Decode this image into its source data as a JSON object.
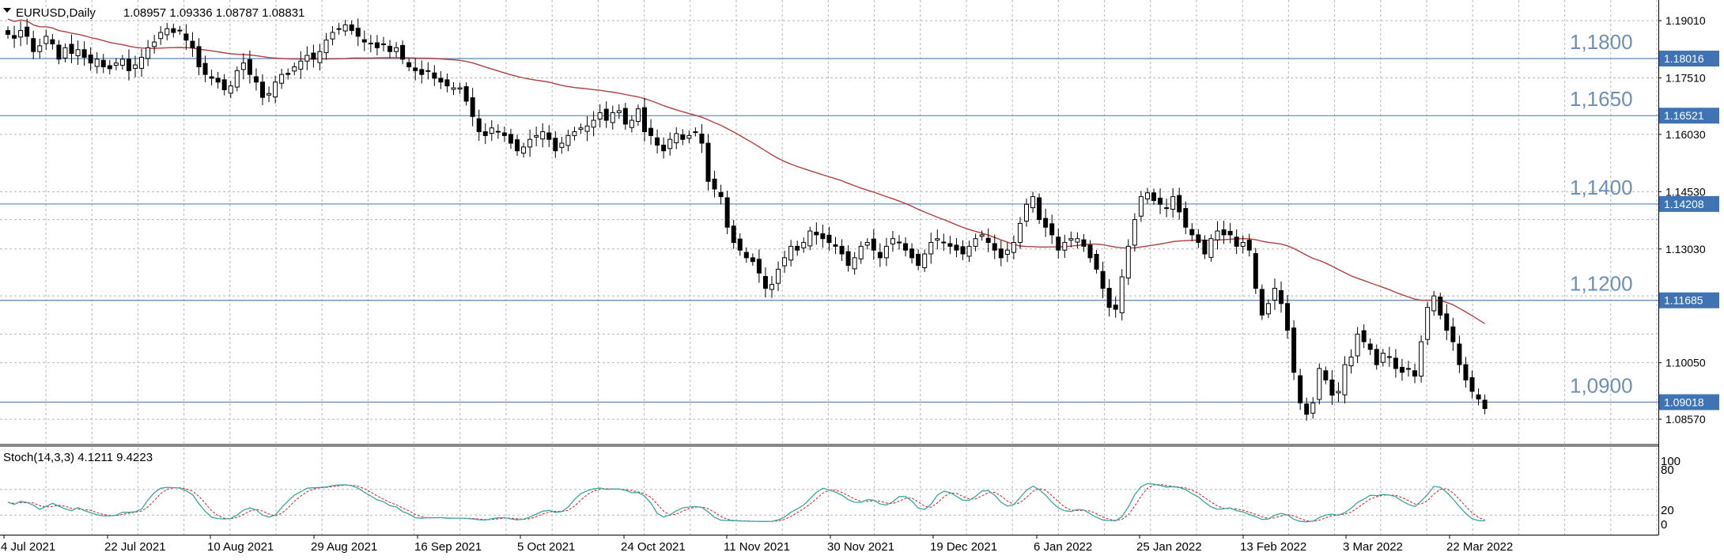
{
  "header": {
    "dropdown_icon": "triangle-down-icon",
    "symbol_label": "EURUSD,Daily",
    "ohlc_text": "1.08957 1.09336 1.08787 1.08831"
  },
  "indicator": {
    "label": "Stoch(14,3,3) 4.1211 9.4223",
    "main_color": "#3aa6a0",
    "signal_color": "#d02020"
  },
  "colors": {
    "candle": "#000000",
    "ma": "#b04040",
    "level_line": "#6d8fb8",
    "level_text": "#6d8fb8",
    "price_tag_bg": "#3f73b4",
    "price_tag_text": "#ffffff",
    "grid": "#b8b8b8"
  },
  "chart_data": [
    {
      "type": "candlestick",
      "symbol": "EURUSD",
      "timeframe": "Daily",
      "ylim": [
        1.0795,
        1.1955
      ],
      "y_ticks": [
        "1.19010",
        "1.17510",
        "1.16030",
        "1.14530",
        "1.13030",
        "1.10050",
        "1.08570"
      ],
      "x_labels": [
        "4 Jul 2021",
        "22 Jul 2021",
        "10 Aug 2021",
        "29 Aug 2021",
        "16 Sep 2021",
        "5 Oct 2021",
        "24 Oct 2021",
        "11 Nov 2021",
        "30 Nov 2021",
        "19 Dec 2021",
        "6 Jan 2022",
        "25 Jan 2022",
        "13 Feb 2022",
        "3 Mar 2022",
        "22 Mar 2022"
      ],
      "horizontal_levels": [
        {
          "label": "1,1800",
          "price": 1.18016,
          "tag": "1.18016"
        },
        {
          "label": "1,1650",
          "price": 1.16521,
          "tag": "1.16521"
        },
        {
          "label": "1,1400",
          "price": 1.14208,
          "tag": "1.14208"
        },
        {
          "label": "1,1200",
          "price": 1.11685,
          "tag": "1.11685"
        },
        {
          "label": "1,0900",
          "price": 1.09018,
          "tag": "1.09018"
        }
      ],
      "close": [
        1.1865,
        1.1855,
        1.1875,
        1.186,
        1.182,
        1.1835,
        1.186,
        1.184,
        1.18,
        1.183,
        1.1815,
        1.1825,
        1.1805,
        1.179,
        1.18,
        1.178,
        1.1775,
        1.179,
        1.18,
        1.177,
        1.1785,
        1.1805,
        1.183,
        1.1845,
        1.187,
        1.188,
        1.187,
        1.1875,
        1.185,
        1.183,
        1.178,
        1.176,
        1.175,
        1.174,
        1.172,
        1.173,
        1.177,
        1.179,
        1.176,
        1.174,
        1.17,
        1.171,
        1.174,
        1.176,
        1.176,
        1.178,
        1.1795,
        1.181,
        1.18,
        1.182,
        1.185,
        1.187,
        1.188,
        1.189,
        1.1875,
        1.186,
        1.1845,
        1.184,
        1.183,
        1.184,
        1.182,
        1.183,
        1.18,
        1.178,
        1.177,
        1.176,
        1.177,
        1.175,
        1.174,
        1.173,
        1.1725,
        1.1725,
        1.169,
        1.165,
        1.161,
        1.16,
        1.162,
        1.161,
        1.16,
        1.158,
        1.156,
        1.157,
        1.159,
        1.16,
        1.161,
        1.159,
        1.156,
        1.158,
        1.16,
        1.161,
        1.162,
        1.1625,
        1.164,
        1.166,
        1.164,
        1.166,
        1.1665,
        1.163,
        1.164,
        1.167,
        1.161,
        1.16,
        1.1575,
        1.156,
        1.159,
        1.1605,
        1.159,
        1.16,
        1.161,
        1.158,
        1.148,
        1.146,
        1.144,
        1.136,
        1.132,
        1.13,
        1.128,
        1.127,
        1.124,
        1.12,
        1.121,
        1.125,
        1.128,
        1.131,
        1.13,
        1.132,
        1.135,
        1.134,
        1.133,
        1.132,
        1.131,
        1.129,
        1.126,
        1.128,
        1.131,
        1.132,
        1.13,
        1.128,
        1.131,
        1.133,
        1.132,
        1.13,
        1.128,
        1.126,
        1.129,
        1.132,
        1.133,
        1.132,
        1.131,
        1.13,
        1.129,
        1.131,
        1.133,
        1.134,
        1.132,
        1.13,
        1.128,
        1.13,
        1.132,
        1.137,
        1.142,
        1.144,
        1.138,
        1.136,
        1.134,
        1.13,
        1.132,
        1.133,
        1.133,
        1.131,
        1.128,
        1.125,
        1.12,
        1.115,
        1.1145,
        1.123,
        1.131,
        1.138,
        1.144,
        1.145,
        1.143,
        1.142,
        1.141,
        1.144,
        1.14,
        1.136,
        1.134,
        1.132,
        1.129,
        1.133,
        1.135,
        1.134,
        1.134,
        1.131,
        1.132,
        1.13,
        1.12,
        1.113,
        1.116,
        1.12,
        1.116,
        1.109,
        1.098,
        1.09,
        1.087,
        1.09,
        1.099,
        1.096,
        1.092,
        1.093,
        1.1,
        1.102,
        1.108,
        1.106,
        1.104,
        1.1,
        1.103,
        1.102,
        1.099,
        1.098,
        1.099,
        1.097,
        1.106,
        1.115,
        1.118,
        1.113,
        1.109,
        1.106,
        1.1,
        1.096,
        1.093,
        1.091,
        1.0885
      ],
      "ma_period_label_shown": false
    },
    {
      "type": "line",
      "name": "Stoch(14,3,3)",
      "ylim": [
        0,
        100
      ],
      "y_ticks": [
        "100",
        "80",
        "20",
        "0"
      ],
      "series": [
        {
          "name": "main",
          "role": "solid"
        },
        {
          "name": "signal",
          "role": "dashed"
        }
      ],
      "last_values": {
        "main": 4.1211,
        "signal": 9.4223
      }
    }
  ]
}
